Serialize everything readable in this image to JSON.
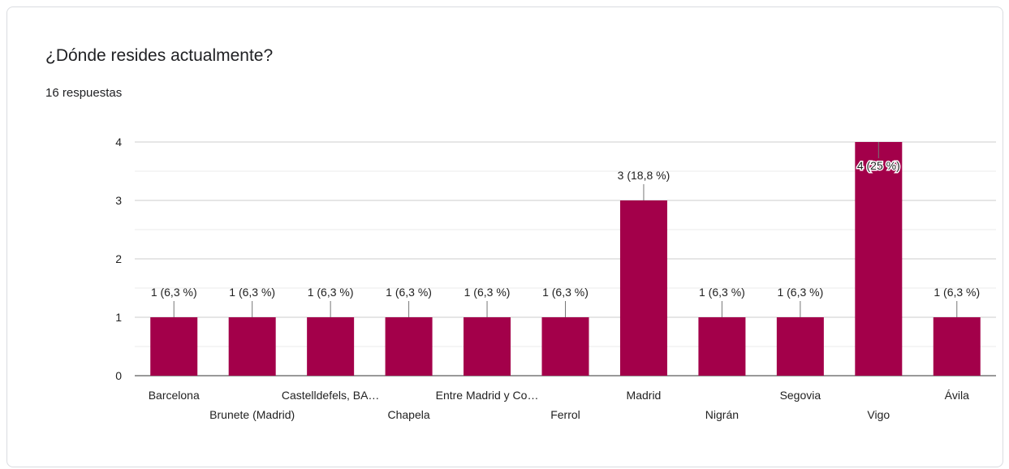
{
  "card": {
    "title": "¿Dónde resides actualmente?",
    "subtitle": "16 respuestas"
  },
  "chart_data": {
    "type": "bar",
    "categories": [
      "Barcelona",
      "Brunete (Madrid)",
      "Castelldefels, BA…",
      "Chapela",
      "Entre Madrid y Co…",
      "Ferrol",
      "Madrid",
      "Nigrán",
      "Segovia",
      "Vigo",
      "Ávila"
    ],
    "values": [
      1,
      1,
      1,
      1,
      1,
      1,
      3,
      1,
      1,
      4,
      1
    ],
    "data_labels": [
      "1 (6,3 %)",
      "1 (6,3 %)",
      "1 (6,3 %)",
      "1 (6,3 %)",
      "1 (6,3 %)",
      "1 (6,3 %)",
      "3 (18,8 %)",
      "1 (6,3 %)",
      "1 (6,3 %)",
      "4 (25 %)",
      "1 (6,3 %)"
    ],
    "yticks": [
      "0",
      "1",
      "2",
      "3",
      "4"
    ],
    "ylim": [
      0,
      4
    ],
    "color": "#a3004a",
    "grid": true,
    "legend": "none"
  }
}
